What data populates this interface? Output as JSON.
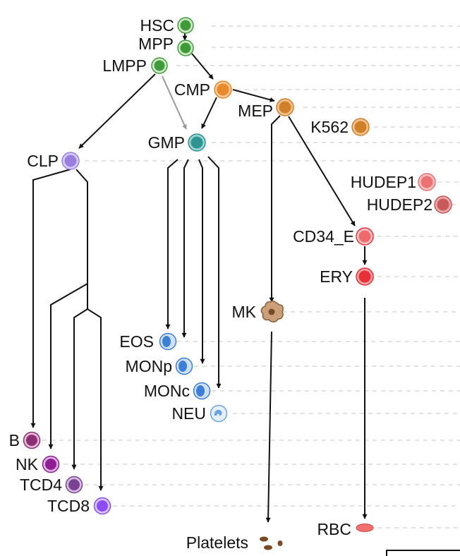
{
  "labels": {
    "hsc": "HSC",
    "mpp": "MPP",
    "lmpp": "LMPP",
    "cmp": "CMP",
    "mep": "MEP",
    "k562": "K562",
    "gmp": "GMP",
    "clp": "CLP",
    "hudep1": "HUDEP1",
    "hudep2": "HUDEP2",
    "cd34e": "CD34_E",
    "ery": "ERY",
    "mk": "MK",
    "eos": "EOS",
    "monp": "MONp",
    "monc": "MONc",
    "neu": "NEU",
    "b": "B",
    "nk": "NK",
    "tcd4": "TCD4",
    "tcd8": "TCD8",
    "rbc": "RBC",
    "platelets": "Platelets"
  },
  "colors": {
    "stem": "#3f9b3a",
    "myeloid_progenitor": "#e8892a",
    "mep": "#cf8028",
    "gmp": "#2e9491",
    "clp": "#9b7fe0",
    "erythroid": "#e8303a",
    "hudep1": "#ea7273",
    "hudep2": "#c9595a",
    "cd34e": "#ee6a6c",
    "granulocyte_monocyte": "#3d7fd6",
    "neutrophil": "#a9cdf0",
    "megakaryocyte": "#a5754b",
    "b_cell": "#8e2f74",
    "nk_cell": "#8e1f93",
    "tcd4": "#7b4293",
    "tcd8": "#8b4cf2",
    "rbc": "#f1706f",
    "platelet": "#7a4a25"
  },
  "icons": {
    "cell": "cell-circle-icon",
    "megakaryocyte": "megakaryocyte-icon",
    "neutrophil": "neutrophil-icon",
    "red_blood_cell": "rbc-icon",
    "platelet": "platelet-icon"
  }
}
